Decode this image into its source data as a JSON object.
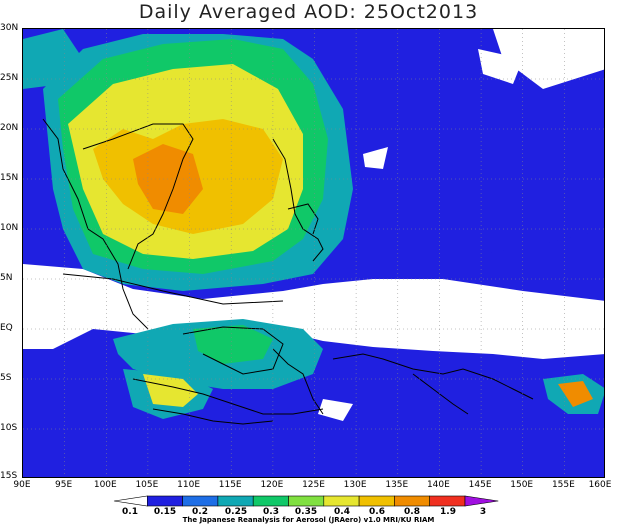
{
  "title": "Daily Averaged AOD: 25Oct2013",
  "lat_labels": [
    "30N",
    "25N",
    "20N",
    "15N",
    "10N",
    "5N",
    "EQ",
    "5S",
    "10S",
    "15S"
  ],
  "lon_labels": [
    "90E",
    "95E",
    "100E",
    "105E",
    "110E",
    "115E",
    "120E",
    "125E",
    "130E",
    "135E",
    "140E",
    "145E",
    "150E",
    "155E",
    "160E"
  ],
  "colorbar": {
    "levels": [
      "0.1",
      "0.15",
      "0.2",
      "0.25",
      "0.3",
      "0.35",
      "0.4",
      "0.6",
      "0.8",
      "1.9",
      "3"
    ],
    "colors": [
      "#ffffff",
      "#2020e0",
      "#1e6ee6",
      "#10a8b4",
      "#10c868",
      "#80e040",
      "#e6e630",
      "#f0c000",
      "#f08c00",
      "#f03020",
      "#a010e0"
    ]
  },
  "credit": "The Japanese Reanalysis for Aerosol (JRAero) v1.0  MRI/KU  RIAM"
}
